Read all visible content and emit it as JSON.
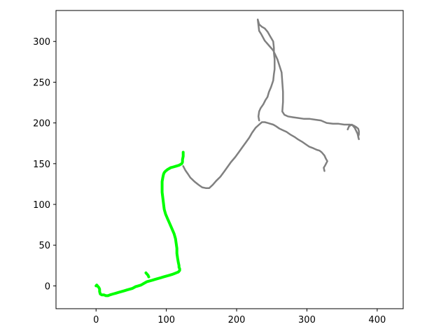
{
  "chart_data": {
    "type": "line",
    "title": "",
    "xlabel": "",
    "ylabel": "",
    "xlim": [
      -57,
      437
    ],
    "ylim": [
      -28,
      338
    ],
    "xticks": [
      0,
      100,
      200,
      300,
      400
    ],
    "yticks": [
      0,
      50,
      100,
      150,
      200,
      250,
      300
    ],
    "xtick_labels": [
      "0",
      "100",
      "200",
      "300",
      "400"
    ],
    "ytick_labels": [
      "0",
      "50",
      "100",
      "150",
      "200",
      "250",
      "300"
    ],
    "grid": false,
    "legend": "none",
    "series": [
      {
        "color": "#808080",
        "line_width": 2.5,
        "x": [
          124,
          127,
          131,
          134,
          140,
          146,
          151,
          156,
          161,
          166,
          171,
          177,
          182,
          187,
          192,
          198,
          203,
          208,
          213,
          218,
          222,
          227,
          232,
          236,
          240,
          244,
          248,
          252,
          256,
          261,
          266,
          271,
          276,
          282,
          287,
          293,
          298,
          303,
          309,
          314,
          318,
          321,
          325,
          327,
          329,
          326,
          324,
          325
        ],
        "y": [
          147,
          142,
          137,
          133,
          128,
          124,
          121,
          120,
          120,
          124,
          129,
          134,
          140,
          146,
          152,
          158,
          164,
          170,
          176,
          182,
          188,
          194,
          198,
          201,
          201,
          200,
          199,
          198,
          196,
          193,
          191,
          189,
          186,
          183,
          180,
          177,
          174,
          171,
          169,
          167,
          166,
          164,
          160,
          156,
          153,
          148,
          145,
          141
        ]
      },
      {
        "color": "#808080",
        "line_width": 2.5,
        "x": [
          232,
          231,
          232,
          234,
          238,
          241,
          244,
          246,
          249,
          252,
          253,
          254,
          254,
          254,
          253,
          253,
          252,
          248,
          244,
          240,
          236,
          232,
          230,
          232,
          235,
          240,
          246,
          252,
          258,
          264
        ],
        "y": [
          203,
          208,
          214,
          218,
          223,
          228,
          232,
          238,
          244,
          252,
          260,
          266,
          272,
          278,
          286,
          292,
          300,
          306,
          312,
          316,
          318,
          321,
          327,
          313,
          309,
          301,
          295,
          289,
          278,
          262
        ]
      },
      {
        "color": "#808080",
        "line_width": 2.5,
        "x": [
          264,
          265,
          266,
          266,
          265,
          268,
          273,
          280,
          288,
          296,
          304,
          312,
          320,
          328,
          337,
          345,
          353,
          361,
          366,
          370,
          373,
          374,
          374,
          373,
          374,
          372,
          368,
          364,
          360,
          358
        ],
        "y": [
          262,
          250,
          238,
          226,
          214,
          210,
          208,
          207,
          206,
          205,
          205,
          204,
          203,
          200,
          199,
          199,
          198,
          198,
          197,
          195,
          193,
          190,
          186,
          183,
          180,
          187,
          194,
          198,
          196,
          192
        ]
      },
      {
        "color": "#00ff00",
        "line_width": 4,
        "x": [
          124,
          124,
          123,
          123,
          122,
          118,
          114,
          110,
          106,
          102,
          99,
          97,
          96,
          95,
          94,
          94,
          94,
          95,
          96,
          97,
          99,
          102,
          105,
          108,
          111,
          113,
          114,
          115,
          115,
          116,
          117,
          118,
          118,
          119,
          119,
          118,
          117,
          114,
          111,
          108,
          104,
          100,
          96,
          92,
          88,
          84,
          80,
          76,
          72,
          68,
          64,
          60,
          56,
          52,
          48,
          44,
          40,
          36,
          32,
          28,
          24,
          20,
          17,
          14,
          11,
          8,
          6,
          5,
          5,
          4,
          3,
          2,
          1,
          0
        ],
        "y": [
          164,
          159,
          155,
          152,
          150,
          148,
          147,
          146,
          145,
          143,
          141,
          139,
          137,
          133,
          128,
          122,
          115,
          108,
          101,
          94,
          88,
          82,
          76,
          70,
          64,
          58,
          52,
          46,
          40,
          34,
          29,
          25,
          23,
          21,
          19,
          18,
          17,
          16,
          15,
          14,
          13,
          12,
          11,
          10,
          9,
          8,
          7,
          6,
          5,
          3,
          1,
          0,
          -1,
          -3,
          -4,
          -5,
          -6,
          -7,
          -8,
          -9,
          -10,
          -11,
          -12,
          -12,
          -11,
          -11,
          -10,
          -7,
          -4,
          -2,
          -1,
          0,
          1,
          0
        ]
      },
      {
        "color": "#00ff00",
        "line_width": 4,
        "x": [
          71,
          72,
          74,
          75
        ],
        "y": [
          16,
          15,
          13,
          11
        ]
      }
    ]
  }
}
